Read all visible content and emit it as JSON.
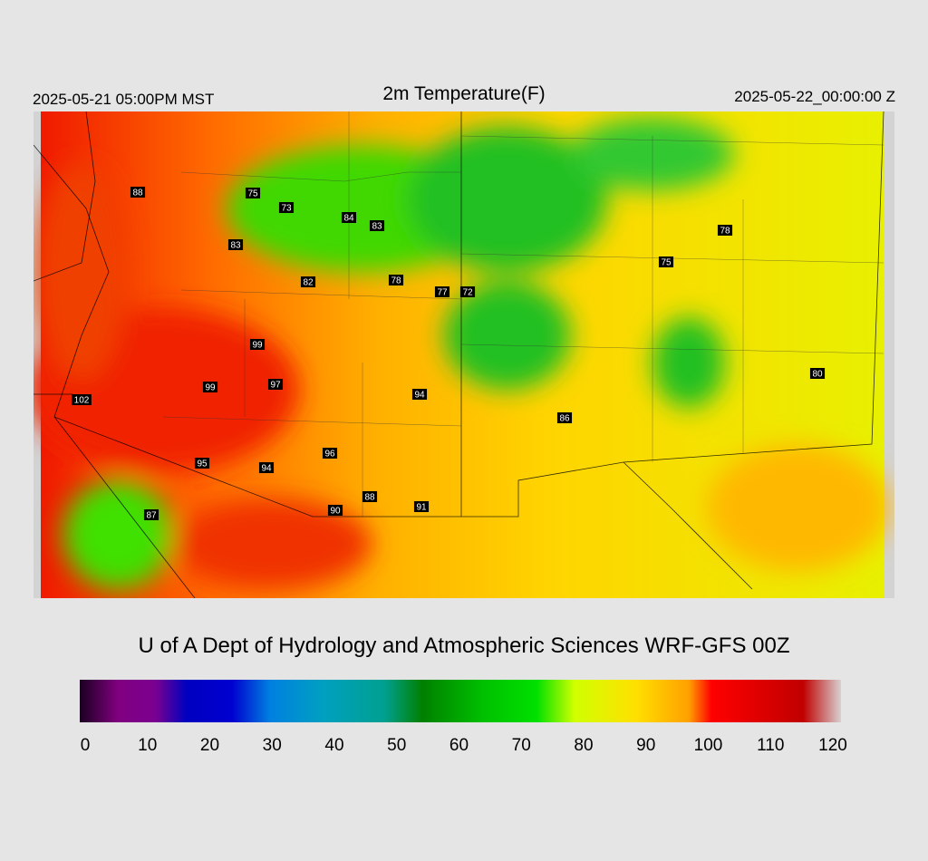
{
  "header": {
    "left": "2025-05-21 05:00PM MST",
    "title": "2m Temperature(F)",
    "right": "2025-05-22_00:00:00 Z"
  },
  "stations": [
    88,
    75,
    73,
    84,
    83,
    83,
    82,
    78,
    77,
    72,
    78,
    75,
    99,
    97,
    99,
    102,
    94,
    80,
    86,
    96,
    95,
    94,
    88,
    90,
    91,
    87
  ],
  "footer": "U of A Dept of Hydrology and Atmospheric Sciences WRF-GFS 00Z",
  "colorbar": {
    "lim": [
      0,
      120
    ],
    "ticks": [
      0,
      10,
      20,
      30,
      40,
      50,
      60,
      70,
      80,
      90,
      100,
      110,
      120
    ]
  }
}
